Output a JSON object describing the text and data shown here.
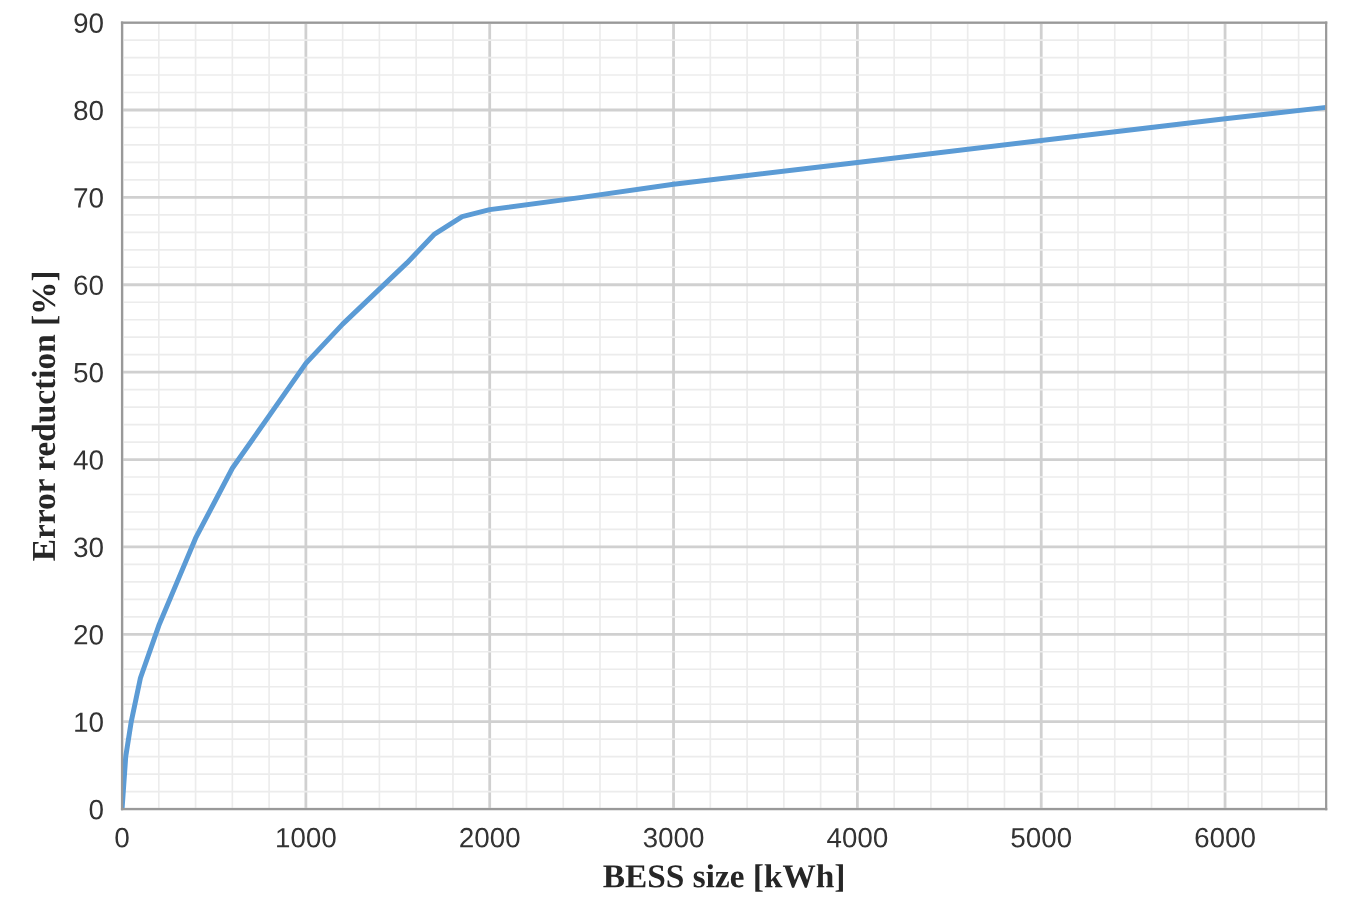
{
  "chart_data": {
    "type": "line",
    "xlabel": "BESS size [kWh]",
    "ylabel": "Error reduction [%]",
    "series": [
      {
        "color": "#5b9bd5",
        "x": [
          0,
          20,
          50,
          100,
          200,
          300,
          400,
          500,
          600,
          800,
          1000,
          1200,
          1400,
          1550,
          1700,
          1850,
          2000,
          2500,
          3000,
          4000,
          5000,
          6000,
          6550
        ],
        "values": [
          0,
          6,
          10,
          15,
          21,
          26,
          31,
          35,
          39,
          45,
          51,
          55.5,
          59.5,
          62.5,
          65.8,
          67.8,
          68.6,
          70,
          71.5,
          74,
          76.5,
          79,
          80.3
        ]
      }
    ],
    "xlim": [
      0,
      6550
    ],
    "xticks": [
      0,
      1000,
      2000,
      3000,
      4000,
      5000,
      6000
    ],
    "ylim": [
      0,
      90
    ],
    "yticks": [
      0,
      10,
      20,
      30,
      40,
      50,
      60,
      70,
      80,
      90
    ],
    "grid": true,
    "marker": "none",
    "line_style": "solid"
  }
}
